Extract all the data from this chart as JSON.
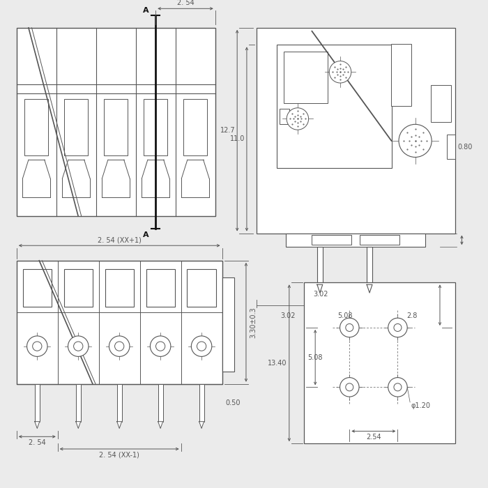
{
  "bg_color": "#ebebeb",
  "line_color": "#555555",
  "dim_color": "#555555",
  "annotations": {
    "top_left": {
      "dim_2_54": "2. 54",
      "label_A": "A"
    },
    "top_right": {
      "dim_12_7": "12.7",
      "dim_11_0": "11.0",
      "dim_0_80": "0.80",
      "dim_3_02": "3.02",
      "dim_5_08": "5.08",
      "dim_2_8": "2.8"
    },
    "bottom_left": {
      "dim_2_54xx1": "2. 54 (XX+1)",
      "dim_2_54": "2. 54",
      "dim_2_54xx_1": "2. 54 (XX-1)",
      "dim_0_50": "0.50",
      "dim_3_30": "3.30±0.3"
    },
    "bottom_right": {
      "dim_3_02": "3.02",
      "dim_13_40": "13.40",
      "dim_5_08": "5.08",
      "dim_2_54": "2.54",
      "dim_dia_1_20": "φ1.20"
    }
  }
}
